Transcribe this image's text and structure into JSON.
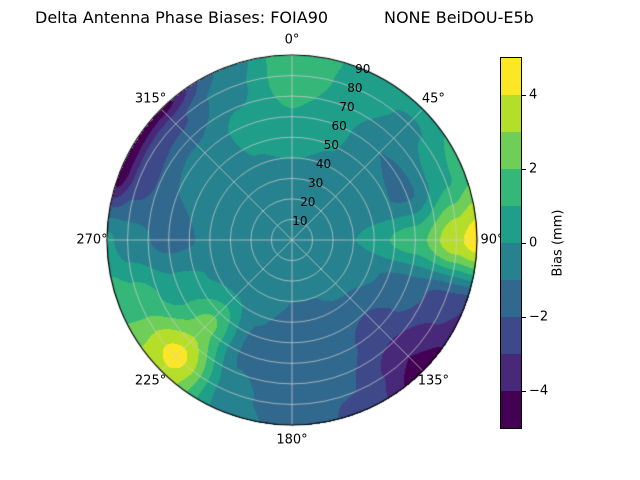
{
  "title": "Delta Antenna Phase Biases: FOIA90           NONE BeiDOU-E5b",
  "colorbar": {
    "label": "Bias (mm)",
    "ticks": [
      "−4",
      "−2",
      "0",
      "2",
      "4"
    ],
    "tick_values": [
      -4,
      -2,
      0,
      2,
      4
    ],
    "min": -5,
    "max": 5
  },
  "polar": {
    "azimuth_labels": [
      "0°",
      "45°",
      "90°",
      "135°",
      "180°",
      "225°",
      "270°",
      "315°"
    ],
    "azimuth_angles": [
      0,
      45,
      90,
      135,
      180,
      225,
      270,
      315
    ],
    "radial_labels": [
      "10",
      "20",
      "30",
      "40",
      "50",
      "60",
      "70",
      "80",
      "90"
    ],
    "radial_values": [
      10,
      20,
      30,
      40,
      50,
      60,
      70,
      80,
      90
    ],
    "radial_label_angle": 22.5,
    "rmax": 90
  },
  "chart_data": {
    "type": "heatmap",
    "projection": "polar-skyplot",
    "title": "Delta Antenna Phase Biases: FOIA90 — NONE BeiDOU-E5b",
    "antenna": "FOIA90",
    "reference": "NONE",
    "signal": "BeiDOU-E5b",
    "colorbar_label": "Bias (mm)",
    "value_range": [
      -5,
      5
    ],
    "contour_level_step_mm": 1,
    "azimuth_deg": [
      0,
      22.5,
      45,
      67.5,
      90,
      112.5,
      135,
      157.5,
      180,
      202.5,
      225,
      247.5,
      270,
      292.5,
      315,
      337.5
    ],
    "radius": [
      0,
      30,
      60,
      80,
      90
    ],
    "values_mm": [
      [
        -0.3,
        -0.3,
        -0.3,
        -0.3,
        -0.3,
        -0.3,
        -0.3,
        -0.3,
        -0.3,
        -0.3,
        -0.3,
        -0.3,
        -0.3,
        -0.3,
        -0.3,
        -0.3
      ],
      [
        -0.3,
        -0.3,
        -0.4,
        -0.2,
        0.0,
        -0.5,
        -0.8,
        -1.0,
        -1.0,
        -0.8,
        -0.5,
        -0.4,
        -0.5,
        -0.5,
        -0.4,
        -0.3
      ],
      [
        0.9,
        0.2,
        -1.0,
        -1.2,
        1.6,
        -1.5,
        -2.4,
        -1.8,
        -2.0,
        -1.2,
        2.4,
        0.4,
        -1.3,
        -1.0,
        -0.7,
        0.3
      ],
      [
        1.7,
        0.7,
        -0.2,
        0.8,
        3.8,
        -2.6,
        -4.0,
        -2.0,
        -1.8,
        -0.6,
        4.4,
        1.6,
        -0.6,
        -2.6,
        -2.2,
        -0.4
      ],
      [
        1.8,
        0.8,
        0.5,
        1.6,
        4.6,
        -3.0,
        -4.6,
        -2.2,
        -1.5,
        -0.4,
        3.8,
        1.8,
        0.2,
        -4.8,
        -4.4,
        -0.8
      ]
    ],
    "colormap": "viridis",
    "palette": [
      "#440154",
      "#482878",
      "#3e4989",
      "#31688e",
      "#26828e",
      "#1f9e89",
      "#35b779",
      "#6ece58",
      "#b5de2b",
      "#fde725"
    ],
    "grid_color": "#cccccc"
  }
}
